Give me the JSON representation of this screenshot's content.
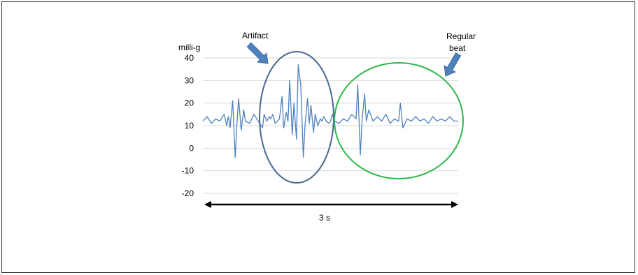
{
  "chart_data": {
    "type": "line",
    "ylabel": "milli-g",
    "ylim": [
      -20,
      40
    ],
    "yticks": [
      40,
      30,
      20,
      10,
      0,
      -10,
      -20
    ],
    "xlim": [
      0,
      3
    ],
    "grid": true,
    "series": [
      {
        "color": "#4f81bd",
        "x": [
          0,
          0.05,
          0.1,
          0.15,
          0.2,
          0.25,
          0.28,
          0.3,
          0.32,
          0.35,
          0.38,
          0.4,
          0.42,
          0.45,
          0.48,
          0.5,
          0.55,
          0.6,
          0.65,
          0.7,
          0.72,
          0.75,
          0.78,
          0.8,
          0.82,
          0.85,
          0.9,
          0.93,
          0.95,
          0.98,
          1.0,
          1.02,
          1.05,
          1.07,
          1.1,
          1.12,
          1.15,
          1.18,
          1.2,
          1.23,
          1.25,
          1.27,
          1.3,
          1.32,
          1.35,
          1.38,
          1.4,
          1.42,
          1.45,
          1.48,
          1.5,
          1.52,
          1.55,
          1.6,
          1.65,
          1.7,
          1.75,
          1.8,
          1.82,
          1.85,
          1.87,
          1.9,
          1.92,
          1.95,
          2.0,
          2.05,
          2.1,
          2.15,
          2.2,
          2.25,
          2.3,
          2.32,
          2.35,
          2.4,
          2.45,
          2.5,
          2.55,
          2.6,
          2.65,
          2.7,
          2.75,
          2.8,
          2.85,
          2.9,
          2.95,
          3.0
        ],
        "y": [
          12,
          14,
          11,
          13,
          12,
          15,
          10,
          14,
          9,
          21,
          -4,
          11,
          22,
          8,
          17,
          12,
          11,
          15,
          12,
          9,
          15,
          12,
          14,
          13,
          15,
          11,
          13,
          23,
          9,
          16,
          12,
          30,
          6,
          20,
          4,
          37,
          28,
          -4,
          10,
          22,
          11,
          19,
          7,
          15,
          10,
          13,
          12,
          14,
          12,
          11,
          12,
          15,
          12,
          11,
          13,
          12,
          15,
          13,
          28,
          -3,
          12,
          24,
          12,
          17,
          12,
          14,
          12,
          15,
          11,
          13,
          12,
          20,
          9,
          13,
          12,
          14,
          12,
          13,
          11,
          14,
          12,
          13,
          12,
          14,
          12,
          12
        ]
      }
    ],
    "annotations": {
      "artifact_label": "Artifact",
      "regular_label_line1": "Regular",
      "regular_label_line2": "beat",
      "duration_label": "3 s"
    },
    "colors": {
      "artifact_ellipse": "#4a6891",
      "regular_ellipse": "#2db84c",
      "arrow_fill": "#4f81bd",
      "grid": "#d9d9d9"
    }
  }
}
